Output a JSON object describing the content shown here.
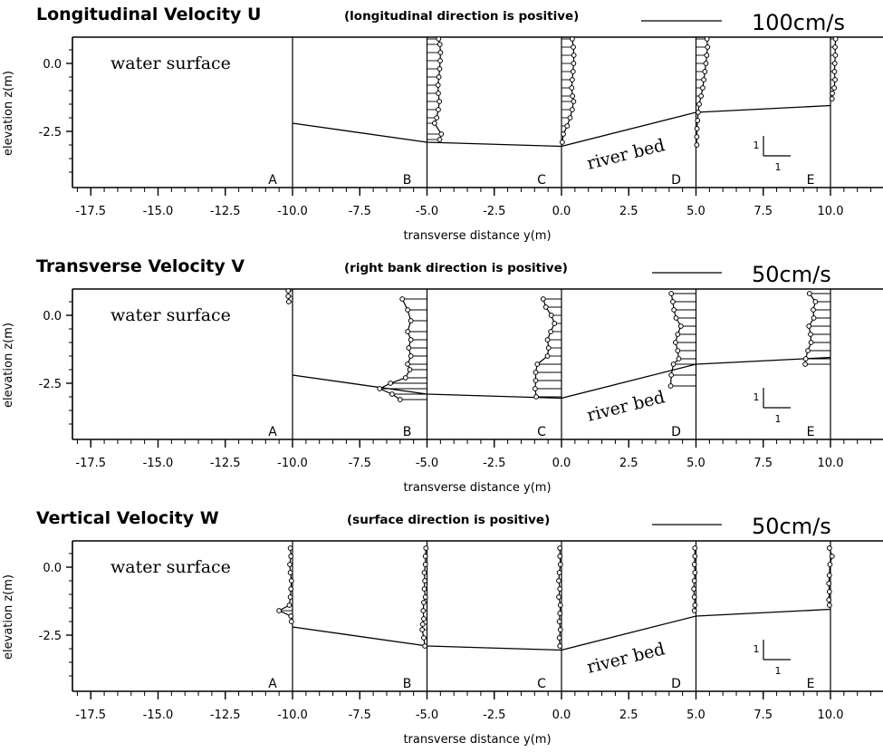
{
  "chart_data": [
    {
      "type": "line",
      "title": "Longitudinal Velocity U",
      "note": "(longitudinal direction is positive)",
      "scale_label": "100cm/s",
      "scale_value_cm_s": 100,
      "xlabel": "transverse distance y(m)",
      "ylabel": "elevation z(m)",
      "xlim": [
        -18.5,
        11.5
      ],
      "ylim": [
        -4.2,
        1.0
      ],
      "x_ticks": [
        "-17.5",
        "-15.0",
        "-12.5",
        "-10.0",
        "-7.5",
        "-5.0",
        "-2.5",
        "0.0",
        "2.5",
        "5.0",
        "7.5",
        "10.0"
      ],
      "y_ticks": [
        "0.0",
        "-2.5"
      ],
      "water_surface_label": "water surface",
      "river_bed_label": "river bed",
      "stations": [
        {
          "name": "A",
          "y": -10.0,
          "bed": -2.2,
          "profile": []
        },
        {
          "name": "B",
          "y": -5.0,
          "bed": -2.9,
          "profile": [
            [
              0.9,
              4.3
            ],
            [
              0.7,
              4.8
            ],
            [
              0.4,
              5.0
            ],
            [
              0.1,
              4.9
            ],
            [
              -0.2,
              4.7
            ],
            [
              -0.5,
              4.4
            ],
            [
              -0.8,
              4.1
            ],
            [
              -1.1,
              4.2
            ],
            [
              -1.4,
              4.6
            ],
            [
              -1.7,
              4.2
            ],
            [
              -2.0,
              3.6
            ],
            [
              -2.2,
              2.8
            ],
            [
              -2.6,
              5.3
            ],
            [
              -2.8,
              4.7
            ]
          ]
        },
        {
          "name": "C",
          "y": 0.0,
          "bed": -3.05,
          "profile": [
            [
              0.9,
              4.0
            ],
            [
              0.6,
              4.4
            ],
            [
              0.3,
              4.6
            ],
            [
              0.0,
              4.5
            ],
            [
              -0.3,
              4.3
            ],
            [
              -0.6,
              4.0
            ],
            [
              -0.9,
              3.8
            ],
            [
              -1.2,
              4.1
            ],
            [
              -1.4,
              4.5
            ],
            [
              -1.7,
              4.0
            ],
            [
              -2.0,
              3.2
            ],
            [
              -2.3,
              2.1
            ],
            [
              -2.6,
              0.7
            ],
            [
              -2.9,
              0.3
            ]
          ]
        },
        {
          "name": "D",
          "y": 5.0,
          "bed": -1.8,
          "profile": [
            [
              0.9,
              4.1
            ],
            [
              0.6,
              4.3
            ],
            [
              0.3,
              4.0
            ],
            [
              0.0,
              3.7
            ],
            [
              -0.3,
              3.3
            ],
            [
              -0.6,
              2.9
            ],
            [
              -0.9,
              2.5
            ],
            [
              -1.2,
              1.9
            ],
            [
              -1.5,
              1.2
            ],
            [
              -1.8,
              0.8
            ],
            [
              -2.1,
              0.6
            ],
            [
              -2.4,
              0.4
            ],
            [
              -2.7,
              0.3
            ],
            [
              -3.0,
              0.3
            ]
          ]
        },
        {
          "name": "E",
          "y": 10.0,
          "bed": -1.55,
          "profile": [
            [
              0.9,
              1.9
            ],
            [
              0.6,
              1.7
            ],
            [
              0.3,
              1.8
            ],
            [
              0.0,
              1.6
            ],
            [
              -0.3,
              1.5
            ],
            [
              -0.6,
              1.7
            ],
            [
              -0.9,
              1.4
            ],
            [
              -1.1,
              0.7
            ],
            [
              -1.3,
              0.6
            ]
          ]
        }
      ]
    },
    {
      "type": "line",
      "title": "Transverse Velocity V",
      "note": "(right bank direction is positive)",
      "scale_label": "50cm/s",
      "scale_value_cm_s": 50,
      "xlabel": "transverse distance y(m)",
      "ylabel": "elevation z(m)",
      "xlim": [
        -18.5,
        11.5
      ],
      "ylim": [
        -4.2,
        1.0
      ],
      "x_ticks": [
        "-17.5",
        "-15.0",
        "-12.5",
        "-10.0",
        "-7.5",
        "-5.0",
        "-2.5",
        "0.0",
        "2.5",
        "5.0",
        "7.5",
        "10.0"
      ],
      "y_ticks": [
        "0.0",
        "-2.5"
      ],
      "water_surface_label": "water surface",
      "river_bed_label": "river bed",
      "stations": [
        {
          "name": "A",
          "y": -10.0,
          "bed": -2.2,
          "profile": [
            [
              0.9,
              -0.8
            ],
            [
              0.7,
              -0.8
            ],
            [
              0.5,
              -0.7
            ]
          ]
        },
        {
          "name": "B",
          "y": -5.0,
          "bed": -2.9,
          "profile": [
            [
              0.6,
              -4.6
            ],
            [
              0.2,
              -3.6
            ],
            [
              -0.2,
              -3.0
            ],
            [
              -0.6,
              -3.6
            ],
            [
              -0.9,
              -3.0
            ],
            [
              -1.2,
              -3.4
            ],
            [
              -1.5,
              -3.0
            ],
            [
              -1.8,
              -3.6
            ],
            [
              -2.0,
              -3.2
            ],
            [
              -2.3,
              -4.0
            ],
            [
              -2.5,
              -6.8
            ],
            [
              -2.7,
              -8.8
            ],
            [
              -2.9,
              -6.5
            ],
            [
              -3.1,
              -5.0
            ]
          ]
        },
        {
          "name": "C",
          "y": 0.0,
          "bed": -3.05,
          "profile": [
            [
              0.6,
              -3.4
            ],
            [
              0.3,
              -2.9
            ],
            [
              0.0,
              -1.9
            ],
            [
              -0.3,
              -1.3
            ],
            [
              -0.6,
              -2.0
            ],
            [
              -0.9,
              -2.6
            ],
            [
              -1.2,
              -2.4
            ],
            [
              -1.5,
              -2.6
            ],
            [
              -1.8,
              -4.5
            ],
            [
              -2.1,
              -4.8
            ],
            [
              -2.4,
              -4.8
            ],
            [
              -2.7,
              -4.9
            ],
            [
              -3.0,
              -4.7
            ]
          ]
        },
        {
          "name": "D",
          "y": 5.0,
          "bed": -1.8,
          "profile": [
            [
              0.8,
              -4.6
            ],
            [
              0.5,
              -4.3
            ],
            [
              0.2,
              -4.1
            ],
            [
              -0.1,
              -3.7
            ],
            [
              -0.4,
              -2.8
            ],
            [
              -0.7,
              -3.4
            ],
            [
              -1.0,
              -3.8
            ],
            [
              -1.3,
              -3.4
            ],
            [
              -1.6,
              -3.2
            ],
            [
              -1.8,
              -4.2
            ],
            [
              -2.2,
              -4.6
            ],
            [
              -2.6,
              -4.7
            ]
          ]
        },
        {
          "name": "E",
          "y": 10.0,
          "bed": -1.55,
          "profile": [
            [
              0.8,
              -3.9
            ],
            [
              0.5,
              -2.8
            ],
            [
              0.2,
              -3.2
            ],
            [
              -0.1,
              -3.1
            ],
            [
              -0.4,
              -4.0
            ],
            [
              -0.7,
              -3.7
            ],
            [
              -1.0,
              -3.6
            ],
            [
              -1.3,
              -4.2
            ],
            [
              -1.6,
              -4.6
            ],
            [
              -1.8,
              -4.7
            ]
          ]
        }
      ]
    },
    {
      "type": "line",
      "title": "Vertical Velocity W",
      "note": "(surface direction is positive)",
      "scale_label": "50cm/s",
      "scale_value_cm_s": 50,
      "xlabel": "transverse distance y(m)",
      "ylabel": "elevation z(m)",
      "xlim": [
        -18.5,
        11.5
      ],
      "ylim": [
        -4.2,
        1.0
      ],
      "x_ticks": [
        "-17.5",
        "-15.0",
        "-12.5",
        "-10.0",
        "-7.5",
        "-5.0",
        "-2.5",
        "0.0",
        "2.5",
        "5.0",
        "7.5",
        "10.0"
      ],
      "y_ticks": [
        "0.0",
        "-2.5"
      ],
      "water_surface_label": "water surface",
      "river_bed_label": "river bed",
      "stations": [
        {
          "name": "A",
          "y": -10.0,
          "bed": -2.2,
          "profile": [
            [
              0.7,
              -0.4
            ],
            [
              0.4,
              -0.3
            ],
            [
              0.1,
              -0.5
            ],
            [
              -0.2,
              -0.4
            ],
            [
              -0.5,
              -0.2
            ],
            [
              -0.8,
              -0.3
            ],
            [
              -1.1,
              -0.4
            ],
            [
              -1.4,
              -0.6
            ],
            [
              -1.6,
              -2.5
            ],
            [
              -1.8,
              -0.3
            ],
            [
              -2.0,
              -0.2
            ]
          ]
        },
        {
          "name": "B",
          "y": -5.0,
          "bed": -2.9,
          "profile": [
            [
              0.7,
              -0.2
            ],
            [
              0.4,
              -0.3
            ],
            [
              0.1,
              -0.3
            ],
            [
              -0.2,
              -0.5
            ],
            [
              -0.5,
              -0.4
            ],
            [
              -0.8,
              -0.5
            ],
            [
              -1.1,
              -0.3
            ],
            [
              -1.3,
              -0.6
            ],
            [
              -1.6,
              -0.7
            ],
            [
              -1.9,
              -0.6
            ],
            [
              -2.1,
              -0.8
            ],
            [
              -2.3,
              -0.9
            ],
            [
              -2.6,
              -0.6
            ],
            [
              -2.9,
              -0.4
            ]
          ]
        },
        {
          "name": "C",
          "y": 0.0,
          "bed": -3.05,
          "profile": [
            [
              0.7,
              -0.3
            ],
            [
              0.4,
              -0.3
            ],
            [
              0.1,
              -0.2
            ],
            [
              -0.2,
              -0.4
            ],
            [
              -0.5,
              -0.5
            ],
            [
              -0.8,
              -0.3
            ],
            [
              -1.1,
              -0.5
            ],
            [
              -1.4,
              -0.2
            ],
            [
              -1.7,
              -0.3
            ],
            [
              -2.0,
              -0.4
            ],
            [
              -2.3,
              -0.2
            ],
            [
              -2.6,
              -0.4
            ],
            [
              -2.9,
              -0.3
            ]
          ]
        },
        {
          "name": "D",
          "y": 5.0,
          "bed": -1.8,
          "profile": [
            [
              0.7,
              -0.2
            ],
            [
              0.4,
              -0.2
            ],
            [
              0.1,
              -0.3
            ],
            [
              -0.2,
              -0.2
            ],
            [
              -0.5,
              -0.3
            ],
            [
              -0.8,
              -0.4
            ],
            [
              -1.1,
              -0.3
            ],
            [
              -1.4,
              -0.2
            ],
            [
              -1.6,
              -0.3
            ]
          ]
        },
        {
          "name": "E",
          "y": 10.0,
          "bed": -1.55,
          "profile": [
            [
              0.7,
              -0.2
            ],
            [
              0.4,
              0.3
            ],
            [
              0.1,
              -0.1
            ],
            [
              -0.3,
              -0.2
            ],
            [
              -0.6,
              -0.3
            ],
            [
              -0.9,
              -0.2
            ],
            [
              -1.2,
              -0.3
            ],
            [
              -1.4,
              -0.2
            ]
          ]
        }
      ]
    }
  ]
}
